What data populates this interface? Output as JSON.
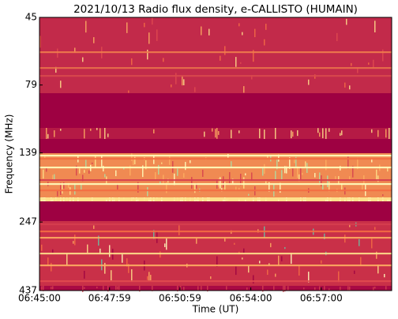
{
  "chart_data": {
    "type": "spectrogram",
    "title": "2021/10/13  Radio flux density, e-CALLISTO (HUMAIN)",
    "x_label": "Time (UT)",
    "y_label": "Frequency (MHz)",
    "xlim": [
      "06:45:00",
      "07:00:00"
    ],
    "xticks": [
      "06:45:00",
      "06:47:59",
      "06:50:59",
      "06:54:00",
      "06:57:00"
    ],
    "ylim": [
      45,
      437
    ],
    "yticks": [
      45,
      79,
      139,
      247,
      437
    ],
    "y_log": true,
    "y_inverted": true
  }
}
